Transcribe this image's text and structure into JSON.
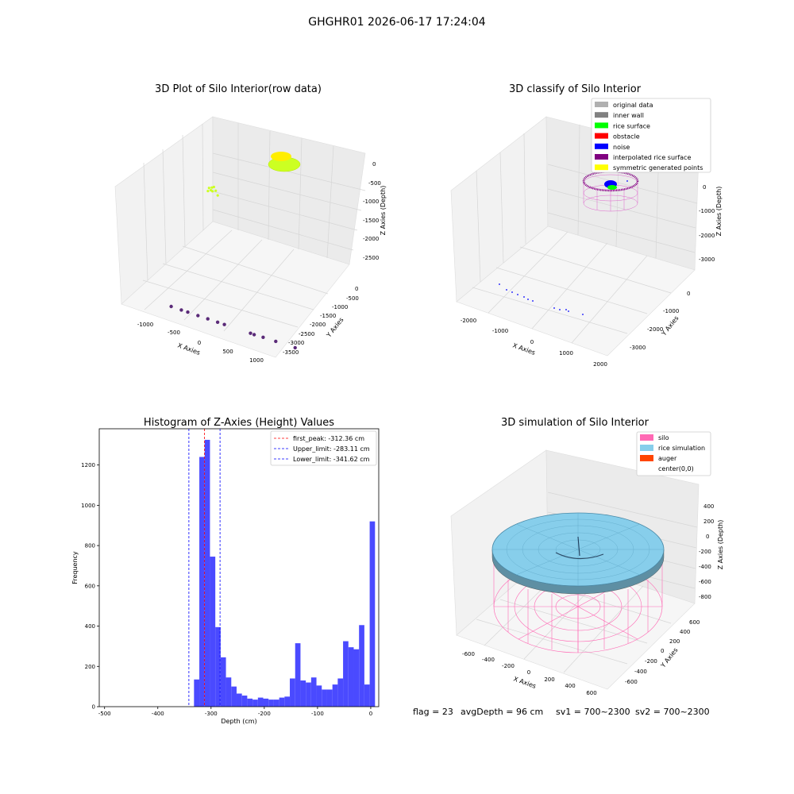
{
  "figure": {
    "suptitle": "GHGHR01 2026-06-17 17:24:04",
    "footer": {
      "flag": "flag = 23",
      "avg_depth": "avgDepth = 96 cm",
      "sv1": "sv1 = 700~2300",
      "sv2": "sv2 = 700~2300"
    }
  },
  "colors": {
    "raw_points": "#ccff22",
    "raw_points_yellow": "#ffee00",
    "raw_noise": "#5a2a78",
    "original_data": "#b0b0b0",
    "inner_wall": "#808080",
    "rice_surface": "#00ff00",
    "obstacle": "#ff0000",
    "noise": "#0000ff",
    "interpolated_rice_surface": "#800080",
    "symmetric_generated_points": "#ffff00",
    "histogram_bar": "#4a4aff",
    "first_peak_line": "#ff0000",
    "limit_line": "#0000ff",
    "silo": "#ff69b4",
    "rice_simulation": "#87ceeb",
    "auger": "#ff4500"
  },
  "chart_data": [
    {
      "type": "scatter",
      "title": "3D Plot of Silo Interior(row data)",
      "xlabel": "X Axies",
      "ylabel": "Y Axies",
      "zlabel": "Z Axies (Depth)",
      "x_ticks": [
        "-1000",
        "-500",
        "0",
        "500",
        "1000"
      ],
      "y_ticks": [
        "0",
        "-500",
        "-1000",
        "-1500",
        "-2000",
        "-2500",
        "-3000",
        "-3500"
      ],
      "z_ticks": [
        "0",
        "-500",
        "-1000",
        "-1500",
        "-2000",
        "-2500"
      ],
      "xlim": [
        -1250,
        1250
      ],
      "ylim": [
        -3700,
        300
      ],
      "zlim": [
        -2900,
        250
      ],
      "series": [
        {
          "points": [
            [
              -360,
              -1200,
              -150
            ],
            [
              -320,
              -1250,
              -120
            ],
            [
              -280,
              -1180,
              -100
            ],
            [
              -340,
              -1300,
              -180
            ],
            [
              -300,
              -1150,
              -200
            ],
            [
              -380,
              -1220,
              -220
            ],
            [
              -260,
              -1280,
              -160
            ],
            [
              -220,
              -1200,
              -250
            ]
          ]
        },
        {
          "points": [
            [
              -1100,
              -2500,
              -2800
            ],
            [
              -950,
              -2650,
              -2800
            ],
            [
              -850,
              -2700,
              -2800
            ],
            [
              -700,
              -2850,
              -2800
            ],
            [
              -550,
              -2950,
              -2800
            ],
            [
              -400,
              -3050,
              -2800
            ],
            [
              -300,
              -3150,
              -2800
            ],
            [
              100,
              -3400,
              -2800
            ],
            [
              300,
              -3450,
              -2800
            ],
            [
              500,
              -3500,
              -2800
            ],
            [
              150,
              -3500,
              -2800
            ],
            [
              800,
              -3650,
              -2800
            ]
          ]
        }
      ]
    },
    {
      "type": "scatter",
      "title": "3D classify of Silo Interior",
      "xlabel": "X Axies",
      "ylabel": "Y Axies",
      "zlabel": "Z Axies (Depth)",
      "x_ticks": [
        "-2000",
        "-1000",
        "0",
        "1000",
        "2000"
      ],
      "y_ticks": [
        "0",
        "-1000",
        "-2000",
        "-3000"
      ],
      "z_ticks": [
        "0",
        "-1000",
        "-2000",
        "-3000"
      ],
      "legend": [
        "original data",
        "inner wall",
        "rice surface",
        "obstacle",
        "noise",
        "interpolated rice surface",
        "symmetric generated points"
      ],
      "legend_position": "top-right"
    },
    {
      "type": "bar",
      "title": "Histogram of Z-Axies (Height) Values",
      "xlabel": "Depth (cm)",
      "ylabel": "Frequency",
      "xlim": [
        -510,
        15
      ],
      "ylim": [
        0,
        1380
      ],
      "x_ticks": [
        -500,
        -400,
        -300,
        -200,
        -100,
        0
      ],
      "y_ticks": [
        0,
        200,
        400,
        600,
        800,
        1000,
        1200
      ],
      "bin_start": -332,
      "bin_width": 10,
      "values": [
        135,
        1240,
        1325,
        745,
        395,
        245,
        145,
        100,
        65,
        55,
        40,
        35,
        45,
        40,
        35,
        35,
        45,
        50,
        140,
        315,
        130,
        120,
        145,
        105,
        85,
        85,
        110,
        140,
        325,
        295,
        285,
        405,
        110,
        920
      ],
      "lines": [
        {
          "label": "first_peak: -312.36 cm",
          "x": -312.36,
          "style": "first_peak"
        },
        {
          "label": "Upper_limit: -283.11 cm",
          "x": -283.11,
          "style": "limit"
        },
        {
          "label": "Lower_limit: -341.62 cm",
          "x": -341.62,
          "style": "limit"
        }
      ],
      "legend_position": "top-right"
    },
    {
      "type": "scatter",
      "title": "3D simulation of Silo Interior",
      "xlabel": "X Axies",
      "ylabel": "Y Axies",
      "zlabel": "Z Axies (Depth)",
      "x_ticks": [
        "-600",
        "-400",
        "-200",
        "0",
        "200",
        "400",
        "600"
      ],
      "y_ticks": [
        "600",
        "400",
        "200",
        "0",
        "-200",
        "-400",
        "-600"
      ],
      "z_ticks": [
        "400",
        "200",
        "0",
        "-200",
        "-400",
        "-600",
        "-800"
      ],
      "legend": [
        "silo",
        "rice simulation",
        "auger",
        "center(0,0)"
      ],
      "legend_position": "top-right"
    }
  ]
}
